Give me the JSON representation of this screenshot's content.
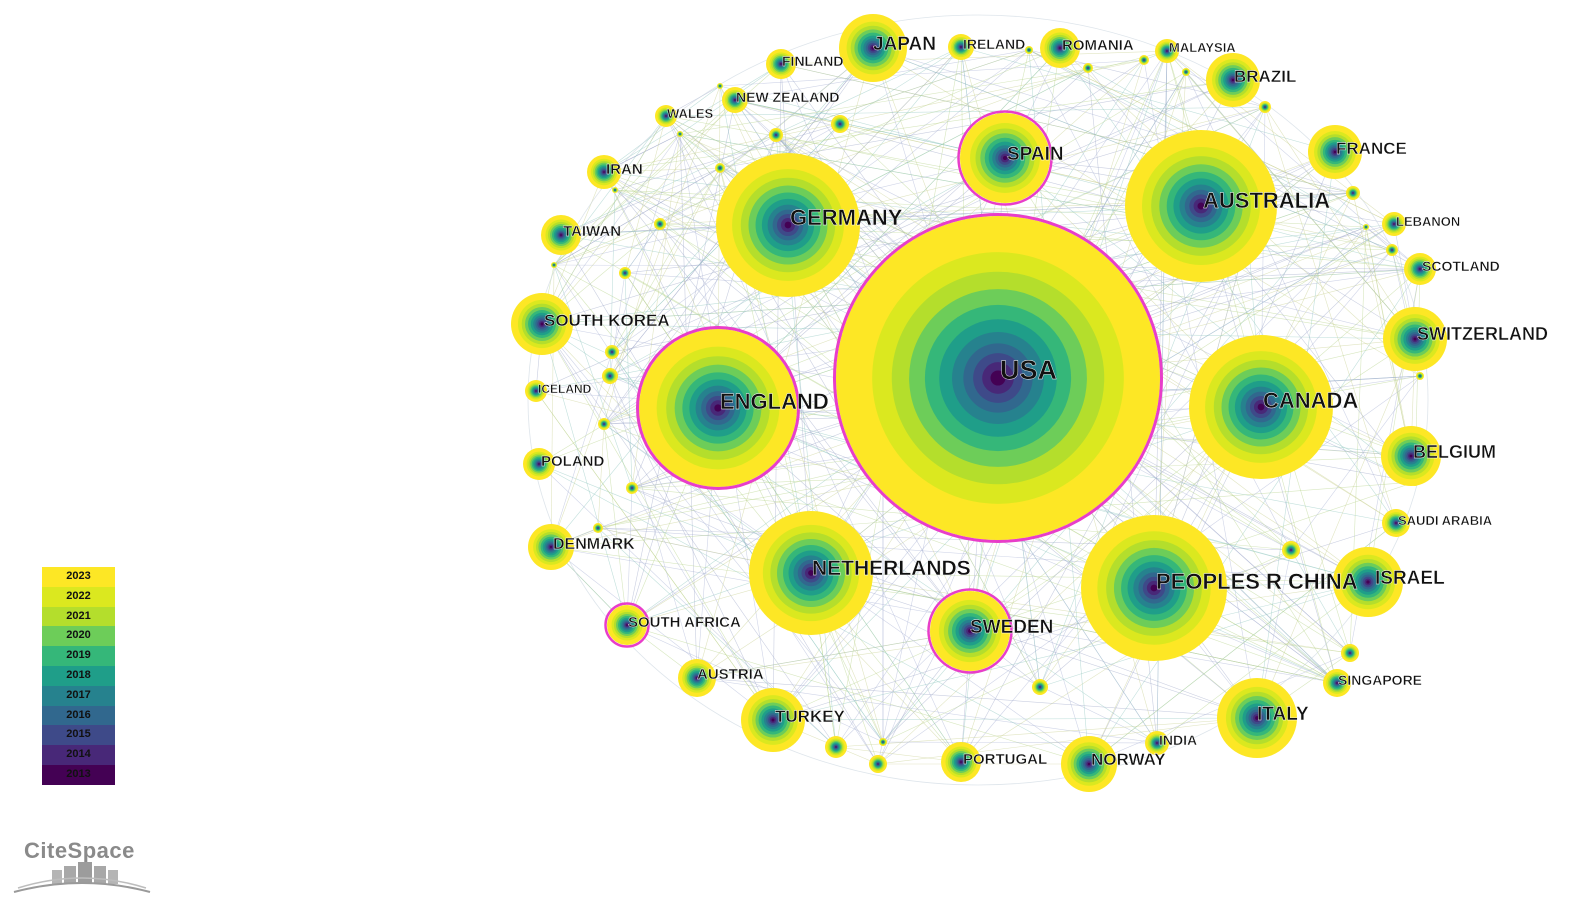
{
  "network": {
    "tool": "CiteSpace",
    "year_palette": {
      "2013": "#440154",
      "2014": "#482878",
      "2015": "#3e4a89",
      "2016": "#31688e",
      "2017": "#26828e",
      "2018": "#1f9e89",
      "2019": "#35b779",
      "2020": "#6dcd59",
      "2021": "#b4de2c",
      "2022": "#dbe81f",
      "2023": "#fde725"
    },
    "burst_ring_color": "#e83ec9",
    "nodes": [
      {
        "label": "USA",
        "size": 10,
        "burst": true
      },
      {
        "label": "ENGLAND",
        "size": 5.0,
        "burst": true
      },
      {
        "label": "GERMANY",
        "size": 4.5,
        "burst": false
      },
      {
        "label": "AUSTRALIA",
        "size": 4.9,
        "burst": false
      },
      {
        "label": "CANADA",
        "size": 4.6,
        "burst": false
      },
      {
        "label": "PEOPLES R CHINA",
        "size": 4.4,
        "burst": false
      },
      {
        "label": "NETHERLANDS",
        "size": 3.8,
        "burst": false
      },
      {
        "label": "SPAIN",
        "size": 2.8,
        "burst": true
      },
      {
        "label": "SWEDEN",
        "size": 2.5,
        "burst": true
      },
      {
        "label": "JAPAN",
        "size": 2.1,
        "burst": false
      },
      {
        "label": "ITALY",
        "size": 2.5,
        "burst": false
      },
      {
        "label": "ISRAEL",
        "size": 2.1,
        "burst": false
      },
      {
        "label": "SWITZERLAND",
        "size": 1.9,
        "burst": false
      },
      {
        "label": "BELGIUM",
        "size": 1.8,
        "burst": false
      },
      {
        "label": "BRAZIL",
        "size": 1.7,
        "burst": false
      },
      {
        "label": "FRANCE",
        "size": 1.7,
        "burst": false
      },
      {
        "label": "SOUTH KOREA",
        "size": 1.9,
        "burst": false
      },
      {
        "label": "TURKEY",
        "size": 2.0,
        "burst": false
      },
      {
        "label": "NORWAY",
        "size": 1.7,
        "burst": false
      },
      {
        "label": "DENMARK",
        "size": 1.4,
        "burst": false
      },
      {
        "label": "TAIWAN",
        "size": 1.3,
        "burst": false
      },
      {
        "label": "IRAN",
        "size": 1.1,
        "burst": false
      },
      {
        "label": "ROMANIA",
        "size": 1.2,
        "burst": false
      },
      {
        "label": "AUSTRIA",
        "size": 1.2,
        "burst": false
      },
      {
        "label": "PORTUGAL",
        "size": 1.3,
        "burst": false
      },
      {
        "label": "SOUTH AFRICA",
        "size": 1.2,
        "burst": true
      },
      {
        "label": "POLAND",
        "size": 1.0,
        "burst": false
      },
      {
        "label": "FINLAND",
        "size": 1.0,
        "burst": false
      },
      {
        "label": "IRELAND",
        "size": 0.8,
        "burst": false
      },
      {
        "label": "NEW ZEALAND",
        "size": 0.8,
        "burst": false
      },
      {
        "label": "WALES",
        "size": 0.7,
        "burst": false
      },
      {
        "label": "MALAYSIA",
        "size": 0.8,
        "burst": false
      },
      {
        "label": "LEBANON",
        "size": 0.8,
        "burst": false
      },
      {
        "label": "SCOTLAND",
        "size": 1.0,
        "burst": false
      },
      {
        "label": "SAUDI ARABIA",
        "size": 0.9,
        "burst": false
      },
      {
        "label": "SINGAPORE",
        "size": 0.9,
        "burst": false
      },
      {
        "label": "INDIA",
        "size": 0.8,
        "burst": false
      },
      {
        "label": "ICELAND",
        "size": 0.7,
        "burst": false
      }
    ]
  },
  "legend": {
    "years": [
      "2023",
      "2022",
      "2021",
      "2020",
      "2019",
      "2018",
      "2017",
      "2016",
      "2015",
      "2014",
      "2013"
    ]
  },
  "logo": {
    "text": "CiteSpace"
  }
}
